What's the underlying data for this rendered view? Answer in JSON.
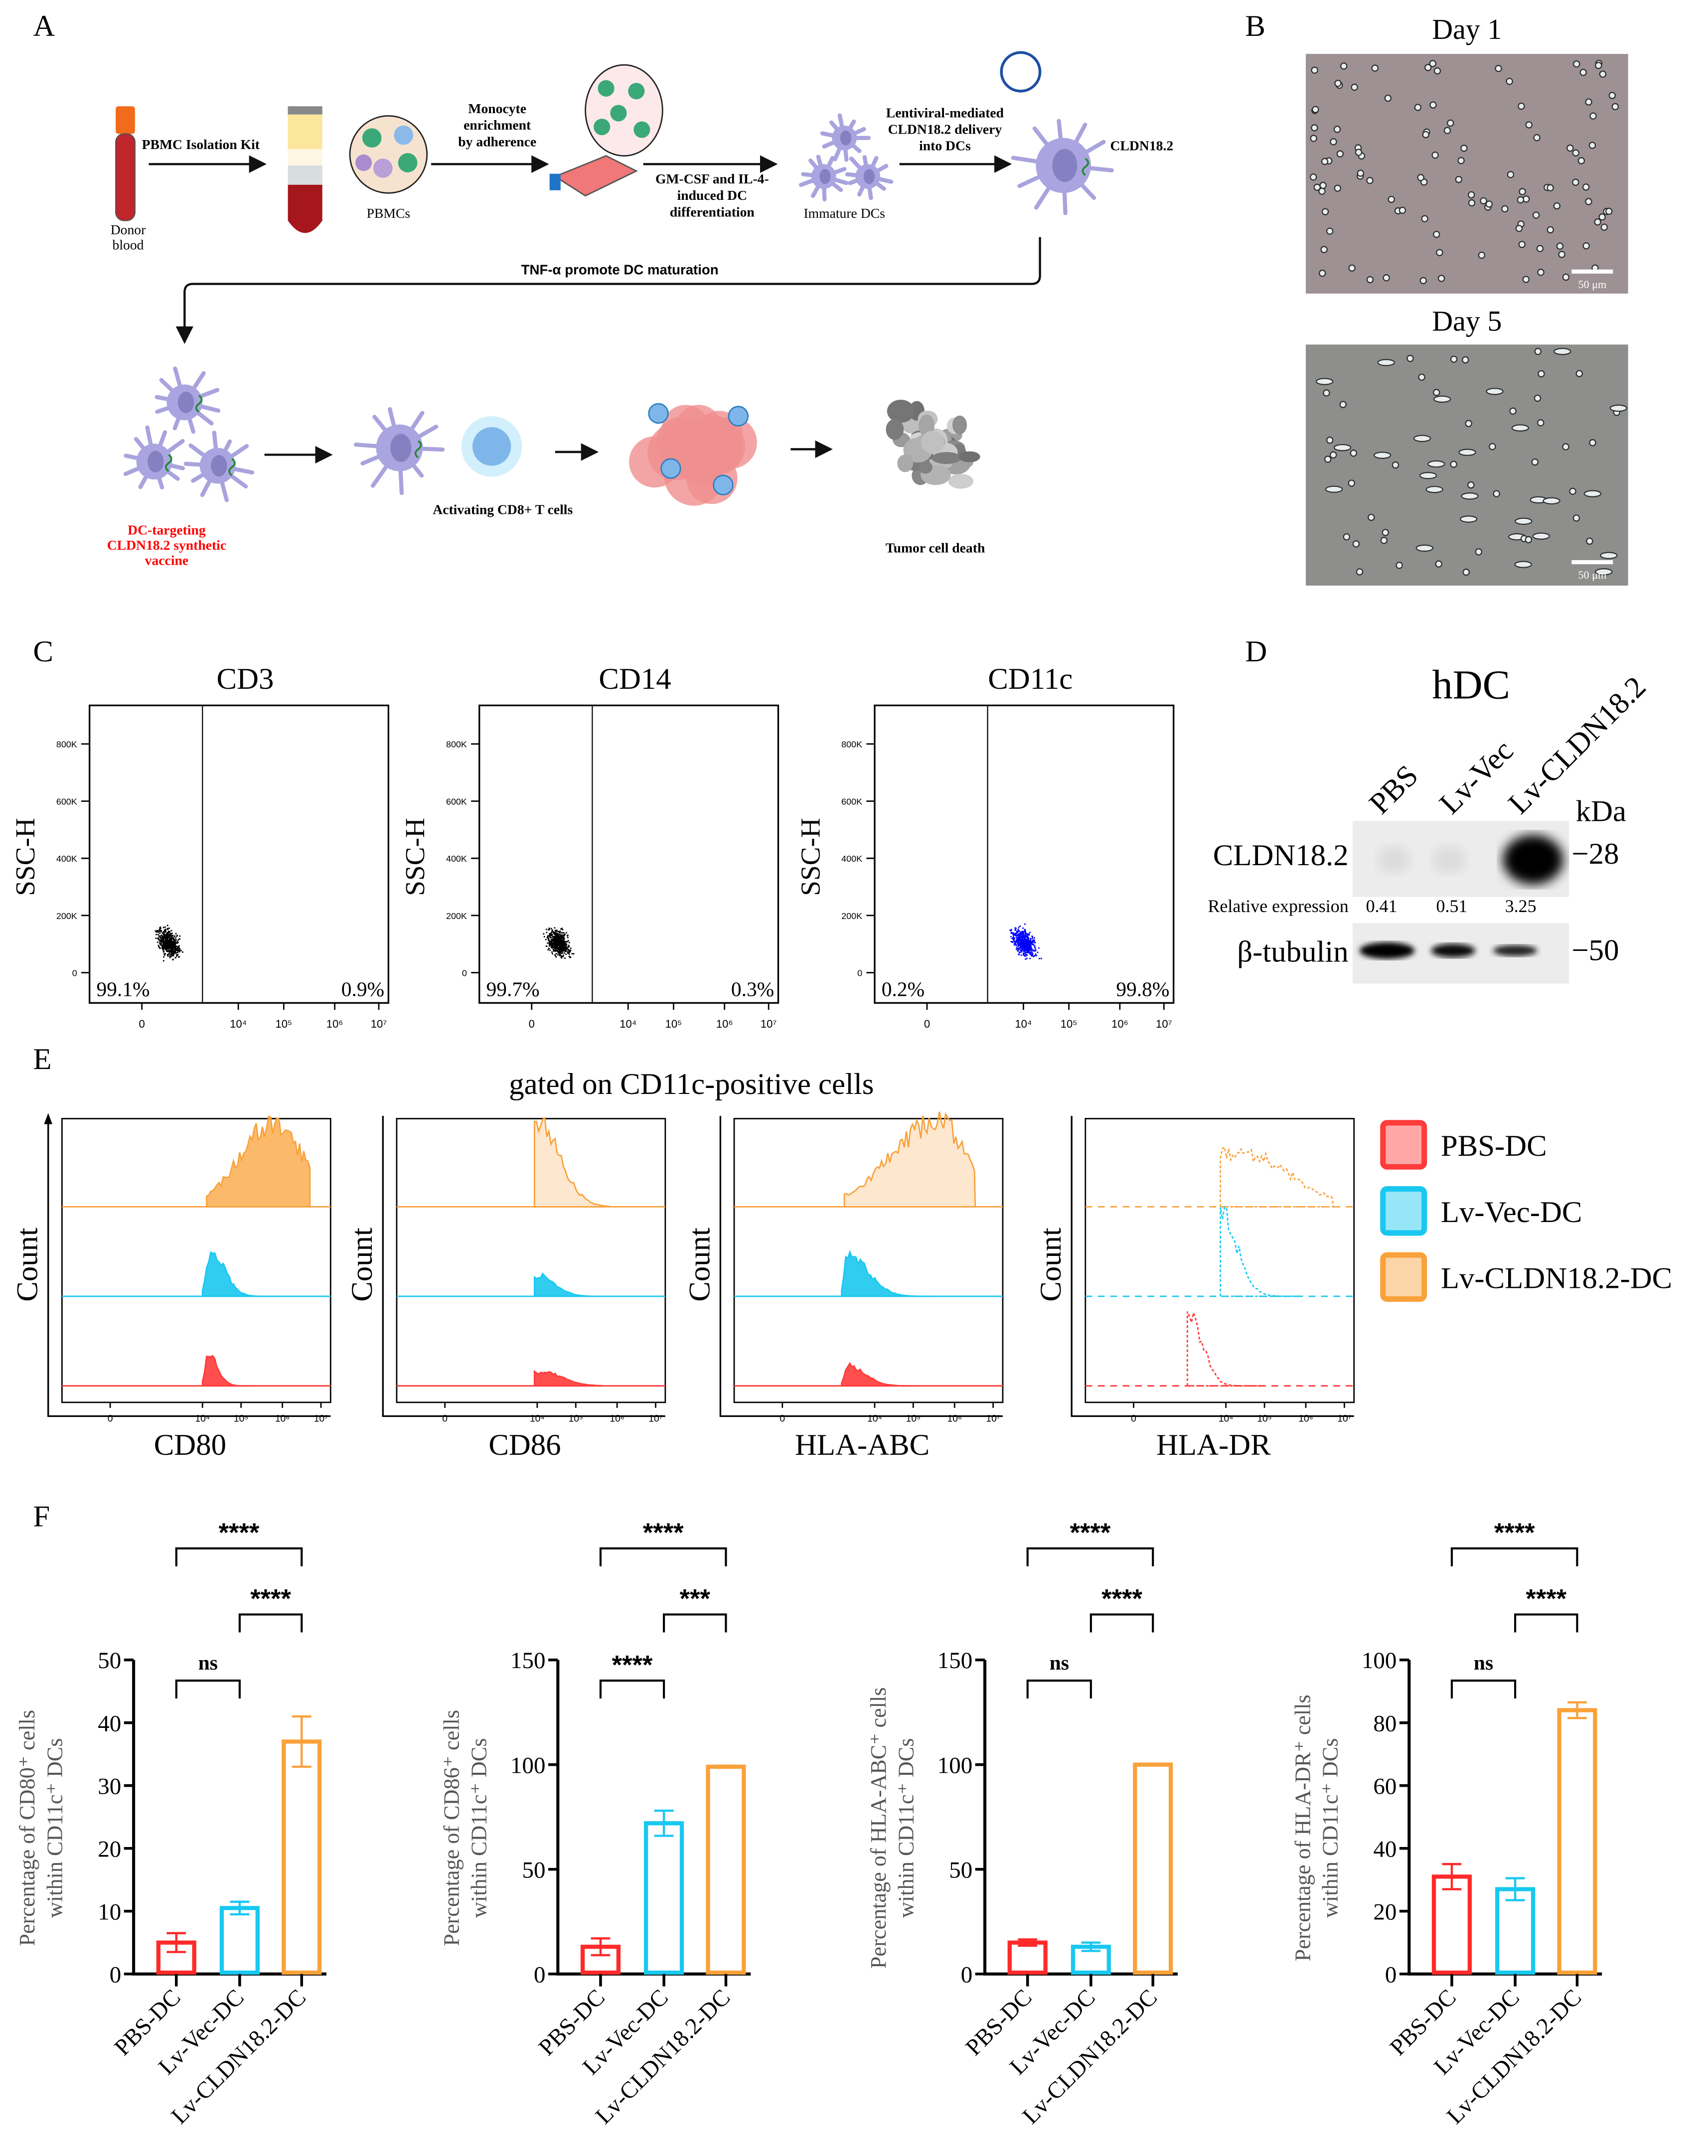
{
  "panels": {
    "A": "A",
    "B": "B",
    "C": "C",
    "D": "D",
    "E": "E",
    "F": "F"
  },
  "diagram": {
    "pbmc_kit": "PBMC Isolation Kit",
    "donor": [
      "Donor",
      "blood"
    ],
    "pbmcs": "PBMCs",
    "monocyte": [
      "Monocyte",
      "enrichment",
      "by adherence"
    ],
    "gmcsf": [
      "GM-CSF and IL-4-",
      "induced DC",
      "differentiation"
    ],
    "immature": "Immature DCs",
    "lenti": [
      "Lentiviral-mediated",
      "CLDN18.2 delivery",
      "into DCs"
    ],
    "cldn": "CLDN18.2",
    "tnf": "TNF-α  promote DC maturation",
    "vaccine": [
      "DC-targeting",
      "CLDN18.2 synthetic",
      "vaccine"
    ],
    "activating": "Activating CD8+ T cells",
    "death": "Tumor cell death"
  },
  "micro": {
    "day1": "Day 1",
    "day5": "Day 5",
    "scale": "50 μm"
  },
  "flow": {
    "ylabel": "SSC-H",
    "yticks": [
      "0",
      "200K",
      "400K",
      "600K",
      "800K"
    ],
    "xticks": [
      "0",
      "10⁴",
      "10⁵",
      "10⁶",
      "10⁷"
    ],
    "plots": [
      {
        "title": "CD3",
        "left": "99.1%",
        "right": "0.9%",
        "color": "#000000"
      },
      {
        "title": "CD14",
        "left": "99.7%",
        "right": "0.3%",
        "color": "#000000"
      },
      {
        "title": "CD11c",
        "left": "0.2%",
        "right": "99.8%",
        "color": "#0000ff"
      }
    ]
  },
  "blot": {
    "title": "hDC",
    "lanes": [
      "PBS",
      "Lv-Vec",
      "Lv-CLDN18.2"
    ],
    "kda": "kDa",
    "target": "CLDN18.2",
    "target_kda": "−28",
    "loading": "β-tubulin",
    "loading_kda": "−50",
    "rel_label": "Relative expression",
    "rel_values": [
      "0.41",
      "0.51",
      "3.25"
    ]
  },
  "histo": {
    "title": "gated on CD11c-positive cells",
    "ylabel": "Count",
    "xticks": [
      "0",
      "10⁴",
      "10⁵",
      "10⁶",
      "10⁷"
    ],
    "plots": [
      {
        "xlabel": "CD80"
      },
      {
        "xlabel": "CD86"
      },
      {
        "xlabel": "HLA-ABC"
      },
      {
        "xlabel": "HLA-DR"
      }
    ],
    "legend": [
      {
        "label": "PBS-DC",
        "color": "#ff3b3b"
      },
      {
        "label": "Lv-Vec-DC",
        "color": "#19c8f0"
      },
      {
        "label": "Lv-CLDN18.2-DC",
        "color": "#f9a13a"
      }
    ]
  },
  "chart_data": [
    {
      "type": "bar",
      "categories": [
        "PBS-DC",
        "Lv-Vec-DC",
        "Lv-CLDN18.2-DC"
      ],
      "values": [
        5,
        10.5,
        37
      ],
      "errors": [
        1.5,
        1,
        4
      ],
      "ylabel": [
        "Percentage of CD80⁺ cells",
        "within CD11c⁺ DCs"
      ],
      "ylim": [
        0,
        50
      ],
      "yticks": [
        0,
        10,
        20,
        30,
        40,
        50
      ],
      "colors": [
        "#ff2a2a",
        "#19c8f0",
        "#f9a13a"
      ],
      "significance": [
        {
          "from": 0,
          "to": 1,
          "label": "ns",
          "level": 0
        },
        {
          "from": 1,
          "to": 2,
          "label": "****",
          "level": 1
        },
        {
          "from": 0,
          "to": 2,
          "label": "****",
          "level": 2
        }
      ]
    },
    {
      "type": "bar",
      "categories": [
        "PBS-DC",
        "Lv-Vec-DC",
        "Lv-CLDN18.2-DC"
      ],
      "values": [
        13,
        72,
        99
      ],
      "errors": [
        4,
        6,
        0.5
      ],
      "ylabel": [
        "Percentage of CD86⁺ cells",
        "within CD11c⁺ DCs"
      ],
      "ylim": [
        0,
        150
      ],
      "yticks": [
        0,
        50,
        100,
        150
      ],
      "colors": [
        "#ff2a2a",
        "#19c8f0",
        "#f9a13a"
      ],
      "significance": [
        {
          "from": 0,
          "to": 1,
          "label": "****",
          "level": 0
        },
        {
          "from": 1,
          "to": 2,
          "label": "***",
          "level": 1
        },
        {
          "from": 0,
          "to": 2,
          "label": "****",
          "level": 2
        }
      ]
    },
    {
      "type": "bar",
      "categories": [
        "PBS-DC",
        "Lv-Vec-DC",
        "Lv-CLDN18.2-DC"
      ],
      "values": [
        15,
        13,
        100
      ],
      "errors": [
        1.5,
        2,
        0.3
      ],
      "ylabel": [
        "Percentage of HLA-ABC⁺ cells",
        "within CD11c⁺ DCs"
      ],
      "ylim": [
        0,
        150
      ],
      "yticks": [
        0,
        50,
        100,
        150
      ],
      "colors": [
        "#ff2a2a",
        "#19c8f0",
        "#f9a13a"
      ],
      "significance": [
        {
          "from": 0,
          "to": 1,
          "label": "ns",
          "level": 0
        },
        {
          "from": 1,
          "to": 2,
          "label": "****",
          "level": 1
        },
        {
          "from": 0,
          "to": 2,
          "label": "****",
          "level": 2
        }
      ]
    },
    {
      "type": "bar",
      "categories": [
        "PBS-DC",
        "Lv-Vec-DC",
        "Lv-CLDN18.2-DC"
      ],
      "values": [
        31,
        27,
        84
      ],
      "errors": [
        4,
        3.5,
        2.5
      ],
      "ylabel": [
        "Percentage of HLA-DR⁺ cells",
        "within CD11c⁺ DCs"
      ],
      "ylim": [
        0,
        100
      ],
      "yticks": [
        0,
        20,
        40,
        60,
        80,
        100
      ],
      "colors": [
        "#ff2a2a",
        "#19c8f0",
        "#f9a13a"
      ],
      "significance": [
        {
          "from": 0,
          "to": 1,
          "label": "ns",
          "level": 0
        },
        {
          "from": 1,
          "to": 2,
          "label": "****",
          "level": 1
        },
        {
          "from": 0,
          "to": 2,
          "label": "****",
          "level": 2
        }
      ]
    }
  ]
}
